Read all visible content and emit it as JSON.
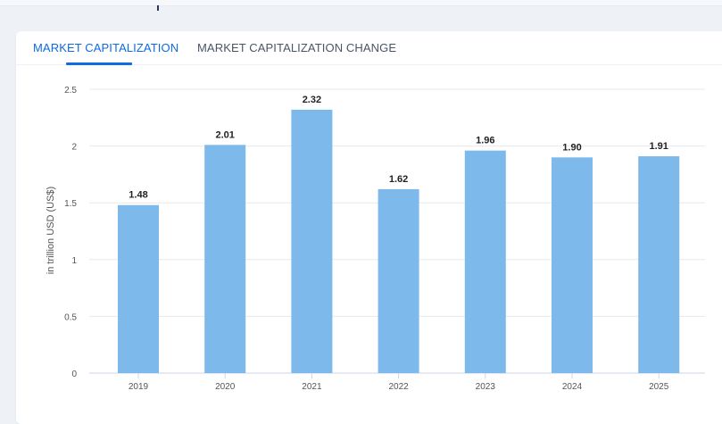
{
  "tabs": [
    {
      "label": "MARKET CAPITALIZATION",
      "active": true
    },
    {
      "label": "MARKET CAPITALIZATION CHANGE",
      "active": false
    }
  ],
  "colors": {
    "bar": "#7db9ea",
    "accent": "#0e6be0"
  },
  "chart_data": {
    "type": "bar",
    "categories": [
      "2019",
      "2020",
      "2021",
      "2022",
      "2023",
      "2024",
      "2025"
    ],
    "values": [
      1.48,
      2.01,
      2.32,
      1.62,
      1.96,
      1.9,
      1.91
    ],
    "value_labels": [
      "1.48",
      "2.01",
      "2.32",
      "1.62",
      "1.96",
      "1.90",
      "1.91"
    ],
    "title": "",
    "xlabel": "",
    "ylabel": "in trillion USD (US$)",
    "ylim": [
      0,
      2.5
    ],
    "yticks": [
      "0",
      "0.5",
      "1",
      "1.5",
      "2",
      "2.5"
    ],
    "grid": true
  }
}
